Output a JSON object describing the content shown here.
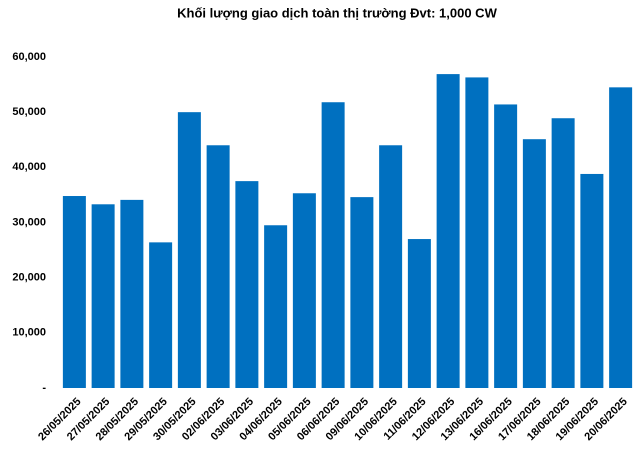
{
  "chart_data": {
    "type": "bar",
    "title": "Khối lượng giao dịch toàn thị trường Đvt: 1,000 CW",
    "categories": [
      "26/05/2025",
      "27/05/2025",
      "28/05/2025",
      "29/05/2025",
      "30/05/2025",
      "02/06/2025",
      "03/06/2025",
      "04/06/2025",
      "05/06/2025",
      "06/06/2025",
      "09/06/2025",
      "10/06/2025",
      "11/06/2025",
      "12/06/2025",
      "13/06/2025",
      "16/06/2025",
      "17/06/2025",
      "18/06/2025",
      "19/06/2025",
      "20/06/2025"
    ],
    "values": [
      34800,
      33300,
      34100,
      26400,
      50000,
      44000,
      37500,
      29500,
      35300,
      51800,
      34600,
      44000,
      27000,
      56900,
      56300,
      51400,
      45100,
      48900,
      38800,
      54500
    ],
    "color": "#0070c0",
    "ylim": [
      0,
      60000
    ],
    "yticks": [
      {
        "value": 0,
        "label": "-"
      },
      {
        "value": 10000,
        "label": "10,000"
      },
      {
        "value": 20000,
        "label": "20,000"
      },
      {
        "value": 30000,
        "label": "30,000"
      },
      {
        "value": 40000,
        "label": "40,000"
      },
      {
        "value": 50000,
        "label": "50,000"
      },
      {
        "value": 60000,
        "label": "60,000"
      }
    ],
    "grid": false
  }
}
